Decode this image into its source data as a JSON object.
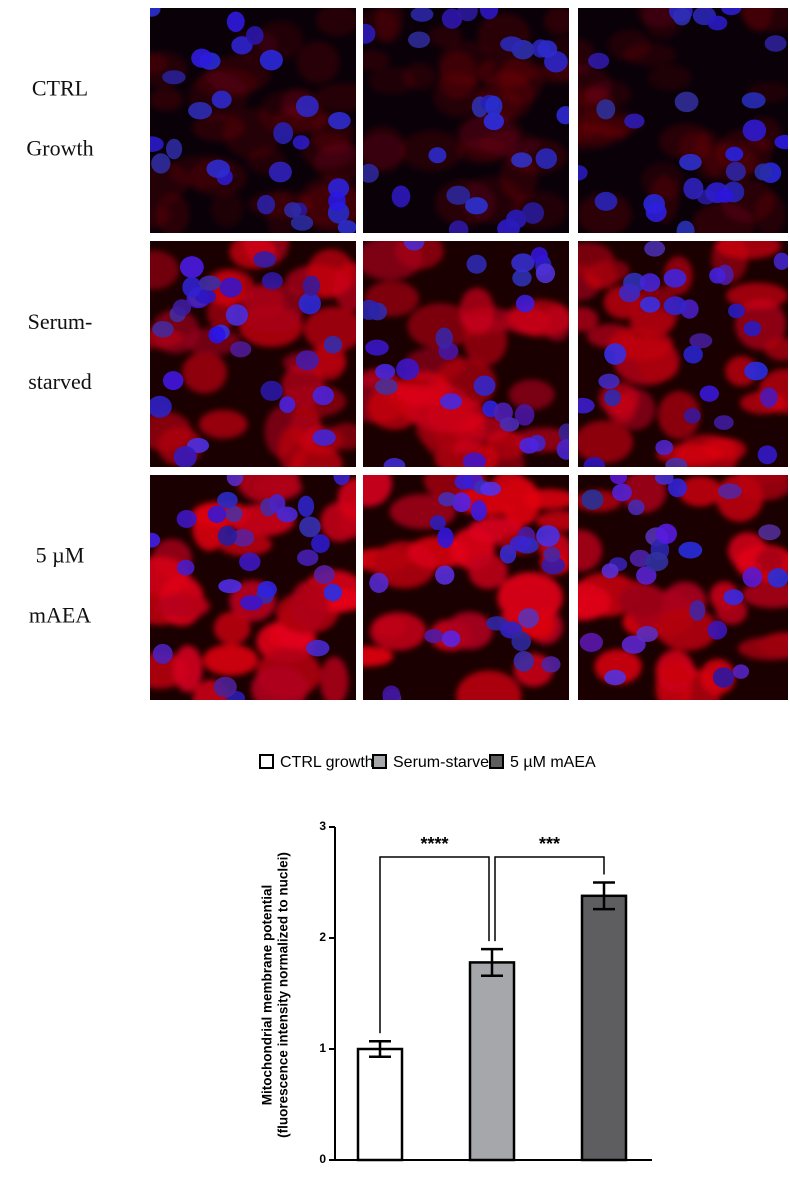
{
  "image_rows": [
    {
      "label": [
        "CTRL",
        "Growth"
      ]
    },
    {
      "label": [
        "Serum-",
        "starved"
      ]
    },
    {
      "label": [
        "5 µM",
        "mAEA"
      ]
    }
  ],
  "chart_data": {
    "type": "bar",
    "categories": [
      "CTRL growth",
      "Serum-starved",
      "5 µM mAEA"
    ],
    "colors": [
      "#ffffff",
      "#a6a7ab",
      "#5e5e60"
    ],
    "values": [
      1.0,
      1.78,
      2.38
    ],
    "errors": [
      0.07,
      0.12,
      0.12
    ],
    "ylabel": [
      "Mitochondrial membrane potential",
      "(fluorescence intensity normalized to nuclei)"
    ],
    "ylim": [
      0,
      3
    ],
    "yticks": [
      0,
      1,
      2,
      3
    ],
    "annotations": [
      "****",
      "***"
    ]
  }
}
